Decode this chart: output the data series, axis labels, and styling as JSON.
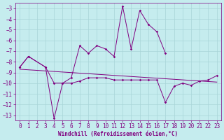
{
  "xlabel": "Windchill (Refroidissement éolien,°C)",
  "background_color": "#c5ecee",
  "grid_color": "#a8d4d8",
  "line_color": "#800080",
  "ylim": [
    -13.5,
    -2.5
  ],
  "xlim": [
    -0.5,
    23.5
  ],
  "yticks": [
    -13,
    -12,
    -11,
    -10,
    -9,
    -8,
    -7,
    -6,
    -5,
    -4,
    -3
  ],
  "xticks": [
    0,
    1,
    2,
    3,
    4,
    5,
    6,
    7,
    8,
    9,
    10,
    11,
    12,
    13,
    14,
    15,
    16,
    17,
    18,
    19,
    20,
    21,
    22,
    23
  ],
  "line1_x": [
    0,
    1,
    3,
    4,
    5,
    6,
    7,
    8,
    9,
    10,
    11,
    12,
    13,
    14,
    15,
    16,
    17,
    18,
    19,
    20,
    21,
    22,
    23
  ],
  "line1_y": [
    -8.5,
    -7.5,
    -8.5,
    -13.3,
    -10.0,
    -10.0,
    -9.8,
    -9.5,
    -9.5,
    -9.5,
    -9.7,
    -9.7,
    -9.7,
    -9.7,
    -9.7,
    -9.7,
    -11.8,
    -10.3,
    -10.0,
    -10.2,
    -9.8,
    -9.7,
    -9.3
  ],
  "line2_x": [
    0,
    1,
    3,
    4,
    5,
    6,
    7,
    8,
    9,
    10,
    11,
    12,
    13,
    14,
    15,
    16,
    17
  ],
  "line2_y": [
    -8.5,
    -7.5,
    -8.5,
    -10.0,
    -10.0,
    -9.5,
    -6.5,
    -7.2,
    -6.5,
    -6.8,
    -7.5,
    -2.8,
    -6.8,
    -3.2,
    -4.5,
    -5.2,
    -7.2
  ],
  "line3_x": [
    0,
    23
  ],
  "line3_y": [
    -8.7,
    -9.9
  ],
  "tick_fontsize": 5.5,
  "xlabel_fontsize": 5.5
}
